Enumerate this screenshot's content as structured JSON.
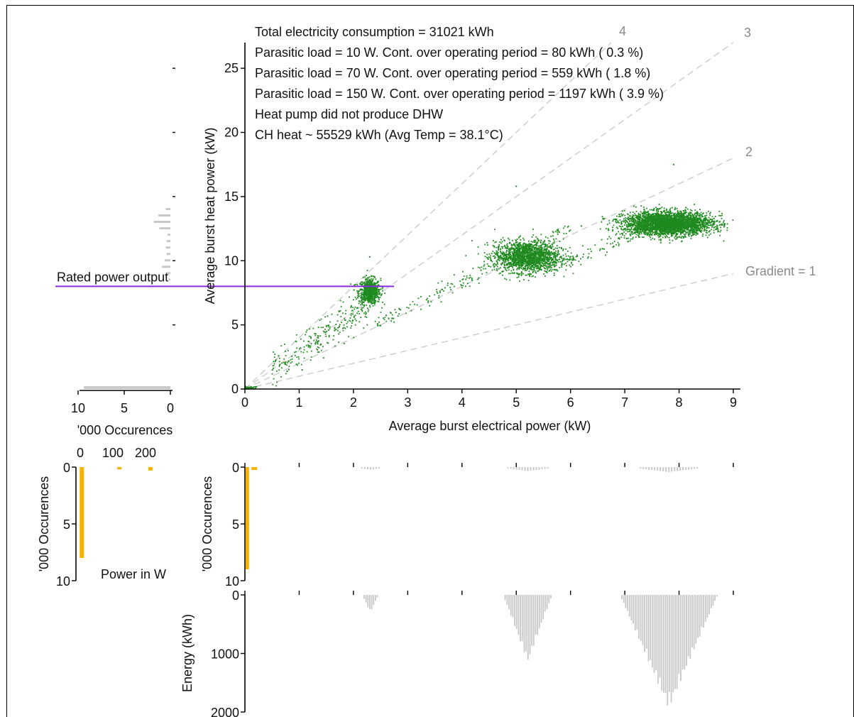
{
  "chart_data": [
    {
      "type": "scatter",
      "xlabel": "Average burst electrical power (kW)",
      "ylabel": "Average burst heat power (kW)",
      "xlim": [
        0,
        9
      ],
      "ylim": [
        0,
        27
      ],
      "xticks": [
        "0",
        "1",
        "2",
        "3",
        "4",
        "5",
        "6",
        "7",
        "8",
        "9"
      ],
      "yticks": [
        "0",
        "5",
        "10",
        "15",
        "20",
        "25"
      ],
      "annotations": [
        "Total electricity consumption =  31021 kWh",
        "Parasitic load =  10 W. Cont. over operating period =    80 kWh (  0.3 %)",
        "Parasitic load =  70 W. Cont. over operating period =   559 kWh (  1.8 %)",
        "Parasitic load =  150 W. Cont. over operating period =  1197 kWh (  3.9 %)",
        "Heat pump did not produce DHW",
        "CH heat ~     55529 kWh (Avg Temp =  38.1°C)"
      ],
      "gradient_lines": [
        {
          "label": "Gradient = 1",
          "slope": 1
        },
        {
          "label": "2",
          "slope": 2
        },
        {
          "label": "3",
          "slope": 3
        },
        {
          "label": "4",
          "slope": 4
        }
      ],
      "reference_line": {
        "label": "Rated power output",
        "y": 8,
        "color": "#8a2be2"
      },
      "clusters": [
        {
          "cx": 0.05,
          "cy": 0.1,
          "sx": 0.1,
          "sy": 0.05,
          "n": 60
        },
        {
          "cx": 2.3,
          "cy": 7.6,
          "sx": 0.1,
          "sy": 0.5,
          "n": 700
        },
        {
          "cx": 5.2,
          "cy": 10.3,
          "sx": 0.3,
          "sy": 0.6,
          "n": 1700
        },
        {
          "cx": 7.8,
          "cy": 12.9,
          "sx": 0.4,
          "sy": 0.45,
          "n": 3200
        },
        {
          "cx": 1.4,
          "cy": 4.2,
          "sx": 0.5,
          "sy": 1.2,
          "n": 260,
          "linear": true
        },
        {
          "cx": 4.2,
          "cy": 9.3,
          "sx": 1.0,
          "sy": 0.5,
          "n": 180,
          "linear": true
        },
        {
          "cx": 6.6,
          "cy": 11.7,
          "sx": 0.6,
          "sy": 0.5,
          "n": 120,
          "linear": true
        }
      ],
      "colors": {
        "scatter": "#1f8a1f",
        "dhw_text": "#33cc33",
        "ch_text": "#1f8a1f",
        "gradient": "#c8c8c8",
        "hist": "#c8c8c8",
        "orange": "#f5b300",
        "rated": "#8a2be2"
      }
    },
    {
      "type": "bar",
      "title": "",
      "xlabel": "'000 Occurences",
      "xticks": [
        "10",
        "5",
        "0"
      ],
      "orientation": "horizontal-left",
      "bins_y": [
        8.5,
        9,
        9.5,
        10,
        10.5,
        11,
        11.5,
        12,
        12.5,
        13,
        13.5,
        14
      ],
      "values": [
        0.2,
        0.4,
        0.9,
        0.6,
        0.4,
        0.5,
        0.4,
        0.3,
        1.2,
        1.8,
        1.3,
        0.5
      ]
    },
    {
      "type": "bar",
      "xticks": [
        "0",
        "100",
        "200"
      ],
      "ylabel": "'000 Occurences",
      "xlabel": "Power in W",
      "yticks": [
        "0",
        "5",
        "10"
      ],
      "values": [
        {
          "x": 5,
          "y": 8
        },
        {
          "x": 120,
          "y": 0.2
        },
        {
          "x": 215,
          "y": 0.3
        }
      ]
    },
    {
      "type": "bar",
      "ylabel": "'000 Occurences",
      "yticks": [
        "0",
        "5",
        "10"
      ],
      "series": [
        {
          "name": "",
          "x": [
            0.05,
            0.1
          ],
          "values": [
            9.0,
            0.3
          ]
        }
      ]
    },
    {
      "type": "bar",
      "ylabel": "Energy (kWh)",
      "yticks": [
        "0",
        "1000",
        "2000"
      ],
      "groups": [
        {
          "center": 2.3,
          "width": 0.3,
          "peak": 300
        },
        {
          "center": 5.2,
          "width": 0.9,
          "peak": 1150
        },
        {
          "center": 7.8,
          "width": 1.8,
          "peak": 1950
        }
      ]
    }
  ]
}
